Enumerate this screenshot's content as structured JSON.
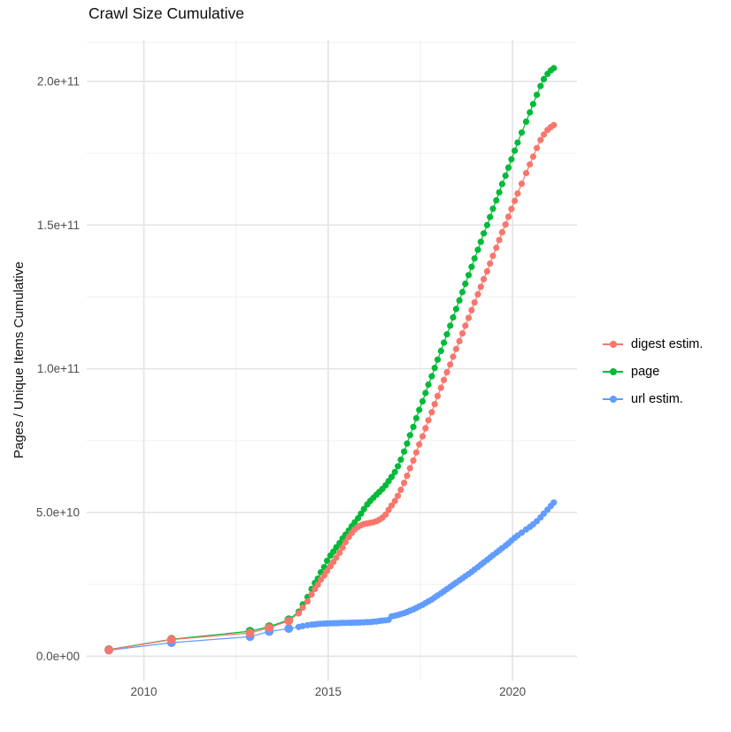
{
  "title": "Crawl Size Cumulative",
  "chart_data": {
    "type": "line",
    "title": "Crawl Size Cumulative",
    "xlabel": "",
    "ylabel": "Pages / Unique Items Cumulative",
    "unit_note": "values_e9 are in units of 1e9 (billions); y axis shown in scientific notation",
    "grid": true,
    "legend_position": "right",
    "xlim": [
      2008.45,
      2021.75
    ],
    "ylim_e9": [
      -8.5,
      216
    ],
    "x_ticks": {
      "values": [
        2010,
        2015,
        2020
      ],
      "labels": [
        "2010",
        "2015",
        "2020"
      ]
    },
    "x_minor_ticks": [
      2012.5,
      2017.5
    ],
    "y_ticks": {
      "values_e9": [
        0,
        50,
        100,
        150,
        200
      ],
      "labels": [
        "0.0e+00",
        "5.0e+10",
        "1.0e+11",
        "1.5e+11",
        "2.0e+11"
      ]
    },
    "y_minor_ticks_e9": [
      25,
      75,
      125,
      175,
      213.5
    ],
    "x": [
      2009.05,
      2010.75,
      2012.88,
      2013.4,
      2013.93,
      2014.2,
      2014.31,
      2014.44,
      2014.55,
      2014.64,
      2014.72,
      2014.8,
      2014.89,
      2014.97,
      2015.06,
      2015.14,
      2015.22,
      2015.31,
      2015.39,
      2015.47,
      2015.56,
      2015.64,
      2015.72,
      2015.81,
      2015.89,
      2015.97,
      2016.06,
      2016.14,
      2016.22,
      2016.31,
      2016.39,
      2016.47,
      2016.56,
      2016.64,
      2016.72,
      2016.81,
      2016.89,
      2016.97,
      2017.06,
      2017.14,
      2017.22,
      2017.31,
      2017.39,
      2017.47,
      2017.56,
      2017.64,
      2017.72,
      2017.81,
      2017.89,
      2017.97,
      2018.06,
      2018.14,
      2018.22,
      2018.31,
      2018.39,
      2018.47,
      2018.56,
      2018.64,
      2018.72,
      2018.81,
      2018.89,
      2018.97,
      2019.06,
      2019.14,
      2019.22,
      2019.31,
      2019.39,
      2019.47,
      2019.56,
      2019.64,
      2019.72,
      2019.81,
      2019.89,
      2019.97,
      2020.06,
      2020.14,
      2020.25,
      2020.37,
      2020.47,
      2020.56,
      2020.66,
      2020.76,
      2020.85,
      2020.95,
      2021.04,
      2021.12
    ],
    "series": [
      {
        "name": "digest estim.",
        "color": "#F8766D",
        "values_e9": [
          2.2,
          5.8,
          8.1,
          9.9,
          12.3,
          14.9,
          16.9,
          19.1,
          21.5,
          23.4,
          24.9,
          26.6,
          28.1,
          29.7,
          31.3,
          32.8,
          34.3,
          36,
          37.8,
          39.7,
          41.5,
          42.9,
          44.1,
          45,
          45.6,
          46,
          46.2,
          46.4,
          46.6,
          47,
          47.5,
          48.2,
          49.3,
          50.9,
          52.4,
          54,
          55.8,
          57.9,
          60.3,
          62.8,
          65.4,
          68.1,
          70.9,
          73.7,
          76.5,
          79.3,
          82.1,
          84.9,
          87.7,
          90.5,
          93.4,
          96.1,
          98.8,
          101.5,
          104.2,
          106.9,
          109.6,
          112.3,
          115,
          117.7,
          120.4,
          123.1,
          125.9,
          128.5,
          131.2,
          133.9,
          136.6,
          139.3,
          142.1,
          144.8,
          147.5,
          150.2,
          152.9,
          155.6,
          158.4,
          161,
          164.4,
          168.1,
          171.1,
          173.8,
          176.8,
          179.6,
          181.5,
          183.1,
          184.1,
          184.8
        ]
      },
      {
        "name": "page",
        "color": "#00BA38",
        "values_e9": [
          2.3,
          5.9,
          8.7,
          10.3,
          12.7,
          15.5,
          18,
          20.6,
          23.4,
          25.5,
          27,
          29.2,
          31,
          33.2,
          35,
          36.4,
          37.9,
          39.4,
          41,
          42.3,
          43.8,
          45.2,
          46.6,
          48,
          49.6,
          51.2,
          52.8,
          54,
          55.1,
          56.2,
          57.2,
          58.2,
          59.5,
          60.9,
          62.4,
          64.1,
          66.1,
          68.4,
          71.2,
          74,
          76.9,
          79.8,
          82.8,
          85.7,
          88.7,
          91.6,
          94.5,
          97.4,
          100.3,
          103.2,
          106.2,
          109.1,
          112,
          115,
          117.9,
          120.8,
          123.8,
          126.7,
          129.6,
          132.6,
          135.5,
          138.4,
          141.4,
          144.2,
          147.1,
          150,
          152.8,
          155.7,
          158.6,
          161.4,
          164.3,
          167.2,
          170,
          172.9,
          175.9,
          178.7,
          182.2,
          186,
          189.2,
          192.1,
          195.3,
          198.4,
          200.8,
          202.6,
          203.8,
          204.6
        ]
      },
      {
        "name": "url estim.",
        "color": "#619CFF",
        "values_e9": [
          2.1,
          4.7,
          6.8,
          8.6,
          9.6,
          10.2,
          10.5,
          10.8,
          11,
          11.1,
          11.2,
          11.3,
          11.35,
          11.4,
          11.45,
          11.5,
          11.5,
          11.55,
          11.6,
          11.6,
          11.65,
          11.65,
          11.7,
          11.7,
          11.75,
          11.8,
          11.85,
          11.9,
          12,
          12.1,
          12.25,
          12.4,
          12.5,
          12.65,
          13.9,
          14.1,
          14.35,
          14.65,
          15,
          15.4,
          15.85,
          16.3,
          16.8,
          17.35,
          17.9,
          18.5,
          19.1,
          19.75,
          20.45,
          21.15,
          21.9,
          22.6,
          23.35,
          24.1,
          24.85,
          25.6,
          26.35,
          27.1,
          27.85,
          28.6,
          29.35,
          30.15,
          31,
          31.85,
          32.65,
          33.5,
          34.3,
          35.15,
          36,
          36.8,
          37.6,
          38.45,
          39.3,
          40.25,
          41.2,
          42,
          43,
          44.1,
          45,
          45.9,
          47,
          48.3,
          49.6,
          51,
          52.3,
          53.5
        ]
      }
    ]
  }
}
